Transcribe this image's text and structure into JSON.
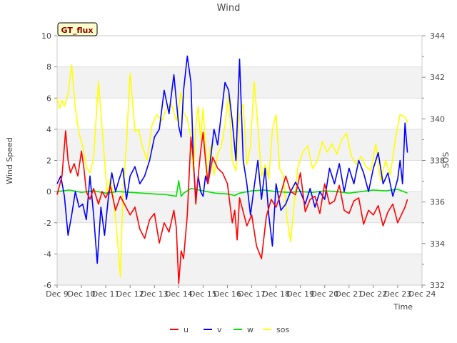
{
  "chart_data": {
    "type": "line",
    "title": "Wind",
    "site_badge": "GT_flux",
    "xlabel": "Time",
    "ylabel": "Wind Speed",
    "y2label": "SOS",
    "ylim": [
      -6,
      10
    ],
    "y2lim": [
      332,
      344
    ],
    "xlim": [
      9,
      24
    ],
    "y_ticks": [
      -6,
      -4,
      -2,
      0,
      2,
      4,
      6,
      8,
      10
    ],
    "y2_ticks": [
      332,
      334,
      336,
      338,
      340,
      342,
      344
    ],
    "x_ticks": [
      {
        "value": 9,
        "label": "Dec 9"
      },
      {
        "value": 10,
        "label": "Dec 10"
      },
      {
        "value": 11,
        "label": "Dec 11"
      },
      {
        "value": 12,
        "label": "Dec 12"
      },
      {
        "value": 13,
        "label": "Dec 13"
      },
      {
        "value": 14,
        "label": "Dec 14"
      },
      {
        "value": 15,
        "label": "Dec 15"
      },
      {
        "value": 16,
        "label": "Dec 16"
      },
      {
        "value": 17,
        "label": "Dec 17"
      },
      {
        "value": 18,
        "label": "Dec 18"
      },
      {
        "value": 19,
        "label": "Dec 19"
      },
      {
        "value": 20,
        "label": "Dec 20"
      },
      {
        "value": 21,
        "label": "Dec 21"
      },
      {
        "value": 22,
        "label": "Dec 22"
      },
      {
        "value": 23,
        "label": "Dec 23"
      },
      {
        "value": 24,
        "label": "Dec 24"
      }
    ],
    "legend": [
      "u",
      "v",
      "w",
      "sos"
    ],
    "legend_position": "bottom-center",
    "series": [
      {
        "name": "u",
        "color": "#ff0000",
        "axis": "left",
        "x": [
          9.0,
          9.2,
          9.35,
          9.45,
          9.55,
          9.7,
          9.85,
          10.0,
          10.1,
          10.2,
          10.35,
          10.5,
          10.7,
          10.85,
          11.0,
          11.2,
          11.4,
          11.6,
          11.8,
          12.0,
          12.2,
          12.4,
          12.6,
          12.8,
          13.0,
          13.2,
          13.4,
          13.6,
          13.8,
          13.9,
          14.0,
          14.1,
          14.2,
          14.35,
          14.5,
          14.6,
          14.7,
          14.8,
          14.9,
          15.0,
          15.1,
          15.2,
          15.4,
          15.6,
          15.8,
          16.0,
          16.2,
          16.3,
          16.4,
          16.5,
          16.6,
          16.8,
          17.0,
          17.2,
          17.4,
          17.6,
          17.8,
          18.0,
          18.2,
          18.4,
          18.6,
          18.8,
          19.0,
          19.2,
          19.4,
          19.6,
          19.8,
          20.0,
          20.2,
          20.4,
          20.6,
          20.8,
          21.0,
          21.2,
          21.4,
          21.6,
          21.8,
          22.0,
          22.2,
          22.4,
          22.6,
          22.8,
          23.0,
          23.15,
          23.3,
          23.4
        ],
        "values": [
          -0.2,
          1.0,
          3.9,
          2.0,
          1.2,
          1.8,
          1.0,
          2.6,
          1.5,
          0.0,
          -0.5,
          0.2,
          -0.8,
          0.0,
          -0.4,
          0.3,
          -1.2,
          -0.3,
          -0.9,
          -1.5,
          -1.0,
          -2.4,
          -3.0,
          -1.8,
          -1.4,
          -3.3,
          -2.0,
          -2.6,
          -1.2,
          -2.3,
          -5.9,
          -3.8,
          -4.3,
          -1.5,
          3.5,
          2.0,
          -0.8,
          1.0,
          2.6,
          3.8,
          2.0,
          0.5,
          2.2,
          1.5,
          1.2,
          0.5,
          -2.0,
          -1.2,
          -3.1,
          -0.4,
          -1.0,
          -2.2,
          -1.5,
          -3.5,
          -4.3,
          -1.6,
          -0.5,
          -1.0,
          -0.1,
          1.0,
          0.0,
          -0.2,
          1.2,
          -1.3,
          -0.5,
          -0.3,
          -1.4,
          0.5,
          -0.8,
          -0.6,
          0.4,
          -1.2,
          -1.4,
          -0.6,
          -0.4,
          -2.1,
          -1.2,
          -1.5,
          -0.9,
          -2.2,
          -1.3,
          -0.8,
          -2.0,
          -1.5,
          -1.0,
          -0.5
        ]
      },
      {
        "name": "v",
        "color": "#0000ff",
        "axis": "left",
        "x": [
          9.0,
          9.15,
          9.3,
          9.45,
          9.6,
          9.75,
          9.9,
          10.05,
          10.2,
          10.35,
          10.5,
          10.65,
          10.8,
          10.95,
          11.1,
          11.25,
          11.4,
          11.55,
          11.7,
          11.85,
          12.0,
          12.2,
          12.4,
          12.6,
          12.8,
          13.0,
          13.2,
          13.4,
          13.6,
          13.8,
          14.0,
          14.1,
          14.2,
          14.35,
          14.5,
          14.6,
          14.7,
          14.8,
          14.9,
          15.0,
          15.1,
          15.2,
          15.3,
          15.45,
          15.6,
          15.75,
          15.9,
          16.05,
          16.2,
          16.35,
          16.5,
          16.65,
          16.8,
          16.95,
          17.1,
          17.25,
          17.4,
          17.55,
          17.7,
          17.85,
          18.0,
          18.2,
          18.4,
          18.6,
          18.8,
          19.0,
          19.2,
          19.4,
          19.6,
          19.8,
          20.0,
          20.2,
          20.4,
          20.6,
          20.8,
          21.0,
          21.2,
          21.4,
          21.6,
          21.8,
          22.0,
          22.2,
          22.4,
          22.6,
          22.8,
          23.0,
          23.1,
          23.2,
          23.3,
          23.4
        ],
        "values": [
          0.5,
          1.0,
          -0.3,
          -2.8,
          -1.5,
          0.0,
          -1.0,
          -0.8,
          -1.8,
          1.0,
          -1.5,
          -4.6,
          -1.0,
          -2.8,
          -0.5,
          1.2,
          0.0,
          0.8,
          1.5,
          -0.5,
          1.0,
          1.6,
          0.5,
          1.0,
          2.0,
          3.5,
          4.0,
          6.5,
          5.0,
          7.5,
          4.2,
          3.5,
          6.5,
          8.7,
          7.0,
          2.0,
          -0.5,
          1.0,
          0.0,
          -0.3,
          1.0,
          0.5,
          2.0,
          4.0,
          3.0,
          5.0,
          7.0,
          6.5,
          4.5,
          2.0,
          8.5,
          2.0,
          0.5,
          -1.5,
          0.3,
          2.0,
          -0.5,
          1.5,
          -1.5,
          -3.5,
          0.5,
          -1.2,
          -0.8,
          0.0,
          0.6,
          0.0,
          -0.8,
          0.2,
          -1.0,
          0.0,
          -0.5,
          1.5,
          0.5,
          1.8,
          0.0,
          1.5,
          0.5,
          2.0,
          1.2,
          0.0,
          1.5,
          2.5,
          0.5,
          1.2,
          -0.3,
          0.8,
          2.0,
          0.5,
          4.4,
          2.5
        ]
      },
      {
        "name": "w",
        "color": "#00e000",
        "axis": "left",
        "x": [
          9.0,
          9.5,
          10.0,
          10.5,
          11.0,
          11.5,
          12.0,
          12.5,
          13.0,
          13.5,
          13.9,
          14.0,
          14.1,
          14.2,
          14.5,
          15.0,
          15.5,
          16.0,
          16.3,
          16.5,
          17.0,
          17.5,
          18.0,
          18.5,
          19.0,
          19.5,
          20.0,
          20.5,
          21.0,
          21.5,
          22.0,
          22.5,
          23.0,
          23.4
        ],
        "values": [
          0.0,
          0.1,
          -0.05,
          0.05,
          -0.1,
          0.0,
          -0.05,
          -0.1,
          -0.15,
          -0.2,
          -0.3,
          0.7,
          -0.3,
          -0.1,
          0.2,
          0.05,
          -0.1,
          -0.15,
          -0.25,
          -0.1,
          0.05,
          0.1,
          0.0,
          -0.05,
          0.0,
          -0.05,
          0.05,
          0.0,
          -0.1,
          0.0,
          0.1,
          0.05,
          0.15,
          -0.1
        ]
      },
      {
        "name": "sos",
        "color": "#ffff00",
        "axis": "right",
        "x": [
          9.0,
          9.1,
          9.2,
          9.3,
          9.45,
          9.6,
          9.75,
          9.9,
          10.05,
          10.2,
          10.35,
          10.5,
          10.7,
          10.9,
          11.05,
          11.2,
          11.35,
          11.5,
          11.6,
          11.7,
          11.85,
          12.0,
          12.2,
          12.35,
          12.5,
          12.7,
          12.9,
          13.1,
          13.3,
          13.5,
          13.7,
          13.9,
          14.0,
          14.1,
          14.2,
          14.35,
          14.5,
          14.6,
          14.7,
          14.8,
          14.9,
          15.0,
          15.1,
          15.2,
          15.3,
          15.45,
          15.6,
          15.75,
          15.9,
          16.05,
          16.2,
          16.35,
          16.5,
          16.65,
          16.8,
          16.95,
          17.1,
          17.25,
          17.4,
          17.55,
          17.7,
          17.85,
          18.0,
          18.15,
          18.3,
          18.45,
          18.6,
          18.75,
          18.9,
          19.1,
          19.3,
          19.5,
          19.7,
          19.9,
          20.1,
          20.3,
          20.5,
          20.7,
          20.9,
          21.1,
          21.3,
          21.5,
          21.7,
          21.9,
          22.1,
          22.3,
          22.5,
          22.7,
          22.9,
          23.1,
          23.3,
          23.4
        ],
        "values": [
          341.0,
          340.5,
          340.9,
          340.6,
          341.2,
          342.6,
          340.5,
          339.3,
          338.7,
          337.7,
          337.4,
          338.1,
          341.8,
          338.8,
          336.5,
          337.2,
          335.8,
          333.9,
          332.4,
          336.3,
          338.8,
          342.2,
          339.4,
          339.5,
          338.7,
          338.0,
          339.7,
          340.2,
          339.9,
          340.5,
          340.7,
          339.9,
          340.6,
          341.3,
          340.3,
          340.0,
          339.1,
          337.5,
          339.7,
          340.6,
          339.0,
          340.5,
          338.6,
          337.0,
          338.7,
          337.3,
          338.3,
          338.7,
          339.7,
          341.2,
          338.0,
          337.5,
          340.2,
          340.7,
          337.8,
          338.7,
          341.8,
          339.7,
          337.2,
          337.8,
          337.1,
          339.5,
          340.2,
          337.6,
          337.3,
          335.2,
          334.1,
          336.0,
          337.7,
          338.4,
          338.7,
          337.6,
          338.0,
          338.9,
          338.4,
          338.8,
          338.3,
          339.0,
          339.3,
          338.2,
          337.8,
          338.2,
          337.7,
          337.5,
          338.8,
          337.0,
          338.0,
          337.3,
          339.0,
          340.2,
          340.1,
          339.8
        ]
      }
    ]
  }
}
